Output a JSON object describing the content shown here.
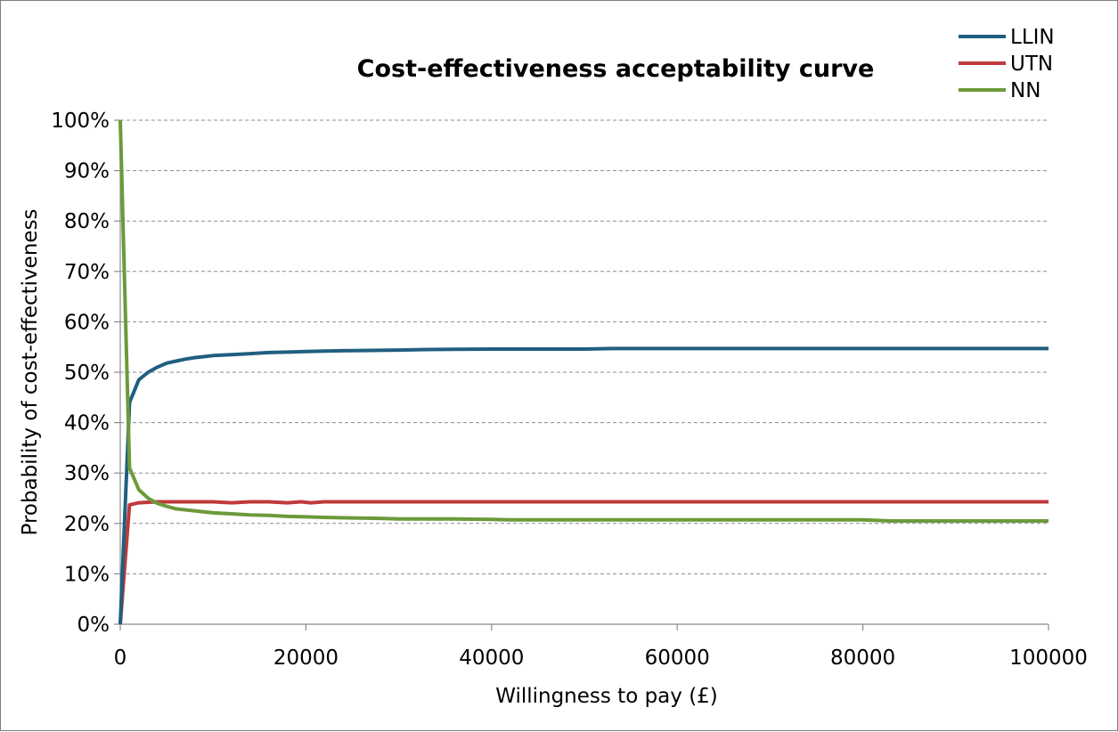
{
  "chart_data": {
    "type": "line",
    "title": "Cost-effectiveness acceptability curve",
    "xlabel": "Willingness to pay (£)",
    "ylabel": "Probability of cost-effectiveness",
    "xlim": [
      0,
      100000
    ],
    "ylim": [
      0,
      1
    ],
    "xticks": [
      0,
      20000,
      40000,
      60000,
      80000,
      100000
    ],
    "xtick_labels": [
      "0",
      "20000",
      "40000",
      "60000",
      "80000",
      "100000"
    ],
    "yticks": [
      0,
      0.1,
      0.2,
      0.3,
      0.4,
      0.5,
      0.6,
      0.7,
      0.8,
      0.9,
      1.0
    ],
    "ytick_labels": [
      "0%",
      "10%",
      "20%",
      "30%",
      "40%",
      "50%",
      "60%",
      "70%",
      "80%",
      "90%",
      "100%"
    ],
    "grid": true,
    "legend_position": "top-right",
    "series": [
      {
        "name": "LLIN",
        "color": "#1f5f7f",
        "points": [
          [
            0,
            0.0
          ],
          [
            1000,
            0.44
          ],
          [
            2000,
            0.485
          ],
          [
            3000,
            0.5
          ],
          [
            4000,
            0.51
          ],
          [
            5000,
            0.518
          ],
          [
            6000,
            0.522
          ],
          [
            7000,
            0.526
          ],
          [
            8000,
            0.529
          ],
          [
            9000,
            0.531
          ],
          [
            10000,
            0.533
          ],
          [
            12000,
            0.535
          ],
          [
            14000,
            0.537
          ],
          [
            16000,
            0.539
          ],
          [
            18000,
            0.54
          ],
          [
            20000,
            0.541
          ],
          [
            22000,
            0.542
          ],
          [
            25000,
            0.543
          ],
          [
            30000,
            0.544
          ],
          [
            33000,
            0.545
          ],
          [
            40000,
            0.546
          ],
          [
            50000,
            0.546
          ],
          [
            53000,
            0.547
          ],
          [
            60000,
            0.547
          ],
          [
            70000,
            0.547
          ],
          [
            80000,
            0.547
          ],
          [
            90000,
            0.547
          ],
          [
            100000,
            0.547
          ]
        ]
      },
      {
        "name": "UTN",
        "color": "#c0393b",
        "points": [
          [
            0,
            0.0
          ],
          [
            1000,
            0.237
          ],
          [
            2000,
            0.241
          ],
          [
            3000,
            0.242
          ],
          [
            4000,
            0.243
          ],
          [
            5000,
            0.243
          ],
          [
            8000,
            0.243
          ],
          [
            10000,
            0.243
          ],
          [
            12000,
            0.241
          ],
          [
            14000,
            0.243
          ],
          [
            16000,
            0.243
          ],
          [
            18000,
            0.241
          ],
          [
            19500,
            0.243
          ],
          [
            20500,
            0.241
          ],
          [
            22000,
            0.243
          ],
          [
            30000,
            0.243
          ],
          [
            40000,
            0.243
          ],
          [
            50000,
            0.243
          ],
          [
            60000,
            0.243
          ],
          [
            70000,
            0.243
          ],
          [
            80000,
            0.243
          ],
          [
            90000,
            0.243
          ],
          [
            100000,
            0.243
          ]
        ]
      },
      {
        "name": "NN",
        "color": "#6b9a3a",
        "points": [
          [
            0,
            1.0
          ],
          [
            1000,
            0.31
          ],
          [
            2000,
            0.267
          ],
          [
            3000,
            0.25
          ],
          [
            4000,
            0.24
          ],
          [
            5000,
            0.234
          ],
          [
            6000,
            0.229
          ],
          [
            8000,
            0.225
          ],
          [
            10000,
            0.221
          ],
          [
            12000,
            0.219
          ],
          [
            14000,
            0.217
          ],
          [
            16000,
            0.216
          ],
          [
            18000,
            0.214
          ],
          [
            20000,
            0.213
          ],
          [
            22000,
            0.212
          ],
          [
            25000,
            0.211
          ],
          [
            28000,
            0.21
          ],
          [
            30000,
            0.209
          ],
          [
            35000,
            0.209
          ],
          [
            40000,
            0.208
          ],
          [
            42000,
            0.207
          ],
          [
            50000,
            0.207
          ],
          [
            60000,
            0.207
          ],
          [
            70000,
            0.207
          ],
          [
            80000,
            0.207
          ],
          [
            83000,
            0.205
          ],
          [
            90000,
            0.205
          ],
          [
            100000,
            0.205
          ]
        ]
      }
    ]
  }
}
